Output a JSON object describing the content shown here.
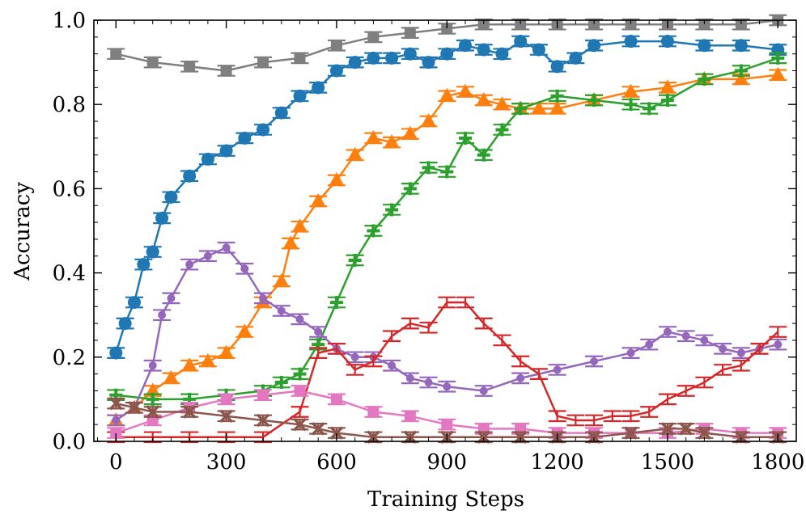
{
  "chart_data": {
    "type": "line",
    "title": "",
    "xlabel": "Training Steps",
    "ylabel": "Accuracy",
    "xlim": [
      -60,
      1850
    ],
    "ylim": [
      0,
      1.0
    ],
    "xticks": [
      0,
      300,
      600,
      900,
      1200,
      1500,
      1800
    ],
    "xtick_labels": [
      "0",
      "300",
      "600",
      "900",
      "1200",
      "1500",
      "1800"
    ],
    "yticks": [
      0,
      0.2,
      0.4,
      0.6,
      0.8,
      1.0
    ],
    "ytick_labels": [
      "0.0",
      "0.2",
      "0.4",
      "0.6",
      "0.8",
      "1.0"
    ],
    "error_bar_halfwidth": 0.012,
    "series": [
      {
        "name": "gray",
        "color": "#7f7f7f",
        "marker": "square",
        "x": [
          0,
          100,
          200,
          300,
          400,
          500,
          600,
          700,
          800,
          900,
          1000,
          1100,
          1200,
          1300,
          1400,
          1500,
          1600,
          1700,
          1800
        ],
        "y": [
          0.92,
          0.9,
          0.89,
          0.88,
          0.9,
          0.91,
          0.94,
          0.96,
          0.97,
          0.98,
          0.99,
          0.99,
          0.99,
          0.99,
          0.99,
          0.99,
          0.99,
          0.99,
          1.0
        ]
      },
      {
        "name": "blue",
        "color": "#1f77b4",
        "marker": "circle",
        "x": [
          0,
          25,
          50,
          75,
          100,
          125,
          150,
          200,
          250,
          300,
          350,
          400,
          450,
          500,
          550,
          600,
          650,
          700,
          750,
          800,
          850,
          900,
          950,
          1000,
          1050,
          1100,
          1150,
          1200,
          1250,
          1300,
          1400,
          1500,
          1600,
          1700,
          1800
        ],
        "y": [
          0.21,
          0.28,
          0.33,
          0.42,
          0.45,
          0.53,
          0.58,
          0.63,
          0.67,
          0.69,
          0.72,
          0.74,
          0.78,
          0.82,
          0.84,
          0.88,
          0.9,
          0.91,
          0.91,
          0.92,
          0.9,
          0.92,
          0.94,
          0.93,
          0.92,
          0.95,
          0.93,
          0.89,
          0.91,
          0.94,
          0.95,
          0.95,
          0.94,
          0.94,
          0.93
        ]
      },
      {
        "name": "orange",
        "color": "#ff7f0e",
        "marker": "triangle",
        "x": [
          0,
          50,
          100,
          150,
          200,
          250,
          300,
          350,
          400,
          450,
          475,
          500,
          550,
          600,
          650,
          700,
          750,
          800,
          850,
          900,
          950,
          1000,
          1050,
          1100,
          1150,
          1200,
          1300,
          1400,
          1500,
          1600,
          1700,
          1800
        ],
        "y": [
          0.05,
          0.08,
          0.12,
          0.15,
          0.18,
          0.19,
          0.21,
          0.26,
          0.33,
          0.38,
          0.47,
          0.51,
          0.57,
          0.62,
          0.68,
          0.72,
          0.71,
          0.73,
          0.76,
          0.82,
          0.83,
          0.81,
          0.8,
          0.79,
          0.79,
          0.79,
          0.81,
          0.83,
          0.84,
          0.86,
          0.86,
          0.87
        ]
      },
      {
        "name": "green",
        "color": "#2ca02c",
        "marker": "plus",
        "x": [
          0,
          100,
          200,
          300,
          400,
          450,
          500,
          550,
          600,
          650,
          700,
          750,
          800,
          850,
          900,
          950,
          1000,
          1050,
          1100,
          1200,
          1300,
          1400,
          1450,
          1500,
          1600,
          1700,
          1800
        ],
        "y": [
          0.11,
          0.1,
          0.1,
          0.11,
          0.12,
          0.14,
          0.16,
          0.23,
          0.33,
          0.43,
          0.5,
          0.55,
          0.6,
          0.65,
          0.64,
          0.72,
          0.68,
          0.74,
          0.79,
          0.82,
          0.81,
          0.8,
          0.79,
          0.81,
          0.86,
          0.88,
          0.91
        ]
      },
      {
        "name": "purple",
        "color": "#9467bd",
        "marker": "small-circle",
        "x": [
          0,
          50,
          100,
          125,
          150,
          200,
          250,
          300,
          350,
          400,
          450,
          500,
          550,
          600,
          650,
          700,
          750,
          800,
          850,
          900,
          1000,
          1100,
          1200,
          1300,
          1400,
          1450,
          1500,
          1550,
          1600,
          1650,
          1700,
          1750,
          1800
        ],
        "y": [
          0.05,
          0.08,
          0.18,
          0.3,
          0.34,
          0.42,
          0.44,
          0.46,
          0.41,
          0.34,
          0.31,
          0.29,
          0.26,
          0.22,
          0.2,
          0.2,
          0.18,
          0.15,
          0.14,
          0.13,
          0.12,
          0.15,
          0.17,
          0.19,
          0.21,
          0.23,
          0.26,
          0.25,
          0.24,
          0.22,
          0.21,
          0.22,
          0.23
        ]
      },
      {
        "name": "red",
        "color": "#d62728",
        "marker": "none",
        "x": [
          0,
          100,
          200,
          300,
          400,
          500,
          550,
          600,
          650,
          700,
          750,
          800,
          850,
          900,
          950,
          1000,
          1050,
          1100,
          1150,
          1200,
          1250,
          1300,
          1350,
          1400,
          1450,
          1500,
          1550,
          1600,
          1650,
          1700,
          1750,
          1800
        ],
        "y": [
          0.01,
          0.01,
          0.01,
          0.01,
          0.01,
          0.07,
          0.21,
          0.22,
          0.17,
          0.19,
          0.25,
          0.28,
          0.27,
          0.33,
          0.33,
          0.28,
          0.24,
          0.19,
          0.16,
          0.06,
          0.05,
          0.05,
          0.06,
          0.06,
          0.07,
          0.1,
          0.12,
          0.14,
          0.17,
          0.18,
          0.22,
          0.26
        ]
      },
      {
        "name": "pink",
        "color": "#e377c2",
        "marker": "square",
        "x": [
          0,
          100,
          200,
          300,
          400,
          500,
          600,
          700,
          800,
          900,
          1000,
          1100,
          1200,
          1300,
          1400,
          1500,
          1600,
          1700,
          1800
        ],
        "y": [
          0.02,
          0.05,
          0.08,
          0.1,
          0.11,
          0.12,
          0.1,
          0.07,
          0.06,
          0.04,
          0.03,
          0.03,
          0.02,
          0.02,
          0.02,
          0.02,
          0.03,
          0.02,
          0.02
        ]
      },
      {
        "name": "brown",
        "color": "#8c564b",
        "marker": "x",
        "x": [
          0,
          50,
          100,
          200,
          300,
          400,
          500,
          550,
          600,
          700,
          800,
          900,
          1000,
          1100,
          1200,
          1300,
          1400,
          1500,
          1550,
          1600,
          1700,
          1800
        ],
        "y": [
          0.09,
          0.08,
          0.07,
          0.07,
          0.06,
          0.05,
          0.04,
          0.03,
          0.02,
          0.01,
          0.01,
          0.01,
          0.01,
          0.01,
          0.01,
          0.01,
          0.02,
          0.03,
          0.03,
          0.02,
          0.01,
          0.01
        ]
      }
    ]
  }
}
